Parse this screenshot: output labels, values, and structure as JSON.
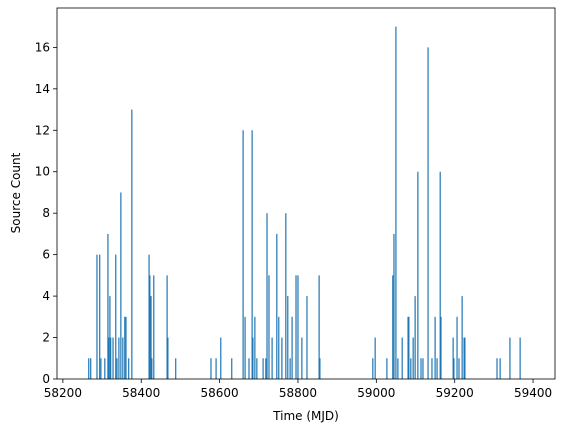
{
  "chart_data": {
    "type": "bar",
    "xlabel": "Time (MJD)",
    "ylabel": "Source Count",
    "color": "#1f77b4",
    "x": [
      58266,
      58271,
      58287,
      58294,
      58297,
      58307,
      58315,
      58317,
      58320,
      58322,
      58328,
      58335,
      58338,
      58343,
      58348,
      58353,
      58358,
      58361,
      58368,
      58376,
      58420,
      58422,
      58425,
      58427,
      58432,
      58466,
      58468,
      58488,
      58578,
      58591,
      58603,
      58631,
      58660,
      58665,
      58675,
      58683,
      58685,
      58690,
      58695,
      58711,
      58718,
      58721,
      58726,
      58734,
      58746,
      58751,
      58759,
      58769,
      58774,
      58780,
      58785,
      58795,
      58800,
      58810,
      58823,
      58854,
      58856,
      58991,
      58997,
      59027,
      59042,
      59045,
      59050,
      59055,
      59066,
      59081,
      59083,
      59088,
      59094,
      59099,
      59106,
      59114,
      59119,
      59132,
      59142,
      59150,
      59155,
      59163,
      59165,
      59196,
      59198,
      59206,
      59211,
      59219,
      59224,
      59226,
      59308,
      59316,
      59341,
      59367
    ],
    "values": [
      1,
      1,
      6,
      6,
      1,
      1,
      7,
      2,
      4,
      2,
      2,
      6,
      1,
      2,
      9,
      2,
      3,
      3,
      1,
      13,
      6,
      5,
      4,
      1,
      5,
      5,
      2,
      1,
      1,
      1,
      2,
      1,
      12,
      3,
      1,
      12,
      2,
      3,
      1,
      1,
      1,
      8,
      5,
      2,
      7,
      3,
      2,
      8,
      4,
      1,
      3,
      5,
      5,
      2,
      4,
      5,
      1,
      1,
      2,
      1,
      5,
      7,
      17,
      1,
      2,
      3,
      3,
      1,
      2,
      4,
      10,
      1,
      1,
      16,
      1,
      3,
      1,
      10,
      3,
      2,
      1,
      3,
      1,
      4,
      2,
      2,
      1,
      1,
      2,
      2
    ],
    "xlim": [
      58185,
      59456
    ],
    "ylim": [
      0,
      17.9
    ],
    "xticks": [
      58200,
      58400,
      58600,
      58800,
      59000,
      59200,
      59400
    ],
    "yticks": [
      0,
      2,
      4,
      6,
      8,
      10,
      12,
      14,
      16
    ]
  }
}
